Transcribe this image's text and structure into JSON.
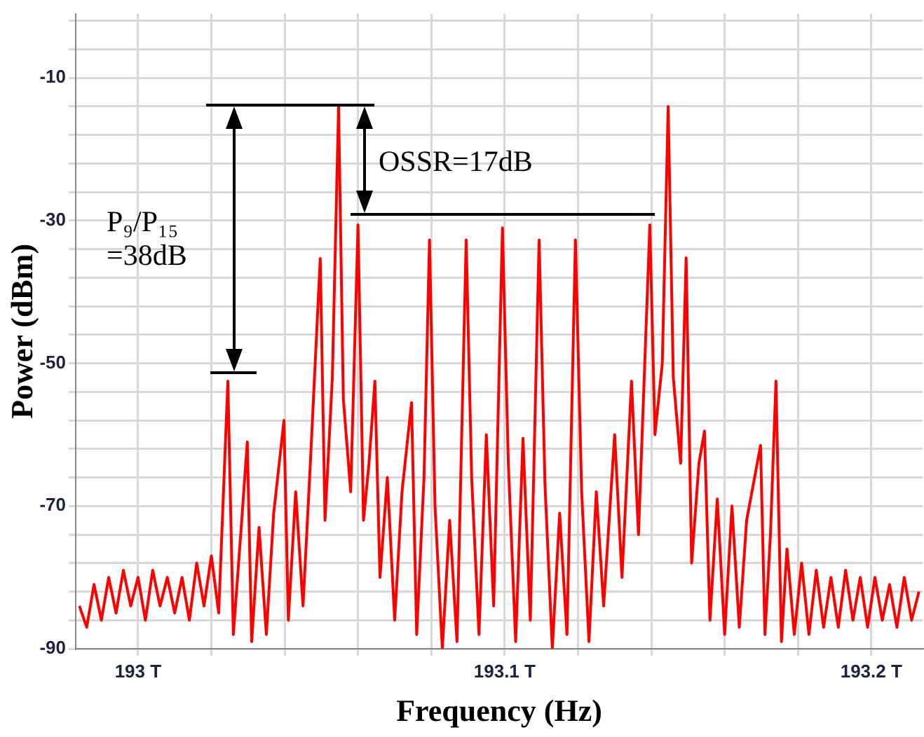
{
  "chart_data": {
    "type": "line",
    "xlabel": "Frequency (Hz)",
    "ylabel": "Power (dBm)",
    "color": "#ff0000",
    "marker": "none",
    "grid": true,
    "xlim": [
      192.983,
      193.214
    ],
    "ylim": [
      -90,
      -1
    ],
    "xticks": [
      {
        "value": 193,
        "label": "193 T"
      },
      {
        "value": 193.02,
        "label": null
      },
      {
        "value": 193.04,
        "label": null
      },
      {
        "value": 193.06,
        "label": null
      },
      {
        "value": 193.08,
        "label": null
      },
      {
        "value": 193.1,
        "label": "193.1 T"
      },
      {
        "value": 193.12,
        "label": null
      },
      {
        "value": 193.14,
        "label": null
      },
      {
        "value": 193.16,
        "label": null
      },
      {
        "value": 193.18,
        "label": null
      },
      {
        "value": 193.2,
        "label": "193.2 T"
      }
    ],
    "yticks": [
      -90,
      {
        "value": -86,
        "label": null
      },
      {
        "value": -82,
        "label": null
      },
      {
        "value": -78,
        "label": null
      },
      {
        "value": -74,
        "label": null
      },
      -70,
      {
        "value": -66,
        "label": null
      },
      {
        "value": -62,
        "label": null
      },
      {
        "value": -58,
        "label": null
      },
      {
        "value": -54,
        "label": null
      },
      -50,
      {
        "value": -46,
        "label": null
      },
      {
        "value": -42,
        "label": null
      },
      {
        "value": -38,
        "label": null
      },
      {
        "value": -34,
        "label": null
      },
      -30,
      {
        "value": -26,
        "label": null
      },
      {
        "value": -22,
        "label": null
      },
      {
        "value": -18,
        "label": null
      },
      {
        "value": -14,
        "label": null
      },
      -10,
      {
        "value": -6,
        "label": null
      },
      {
        "value": -2,
        "label": null
      }
    ],
    "annotations": [
      "OSSR=17dB",
      "P₉/P₁₅\n=38dB"
    ],
    "x": [
      192.984,
      192.986,
      192.988,
      192.99,
      192.992,
      192.994,
      192.996,
      192.998,
      193.0,
      193.002,
      193.004,
      193.006,
      193.008,
      193.01,
      193.012,
      193.014,
      193.016,
      193.018,
      193.02,
      193.022,
      193.0245,
      193.026,
      193.028,
      193.0298,
      193.031,
      193.033,
      193.035,
      193.037,
      193.0398,
      193.041,
      193.043,
      193.045,
      193.047,
      193.0497,
      193.051,
      193.053,
      193.0547,
      193.056,
      193.058,
      193.06,
      193.0615,
      193.063,
      193.0646,
      193.066,
      193.068,
      193.07,
      193.072,
      193.0746,
      193.076,
      193.078,
      193.0795,
      193.081,
      193.083,
      193.085,
      193.087,
      193.0895,
      193.091,
      193.093,
      193.095,
      193.097,
      193.0994,
      193.101,
      193.103,
      193.105,
      193.107,
      193.1094,
      193.111,
      193.113,
      193.115,
      193.117,
      193.1193,
      193.121,
      193.123,
      193.125,
      193.127,
      193.13,
      193.132,
      193.1346,
      193.1365,
      193.1396,
      193.141,
      193.143,
      193.1446,
      193.146,
      193.148,
      193.1495,
      193.151,
      193.153,
      193.1545,
      193.156,
      193.158,
      193.16,
      193.162,
      193.164,
      193.166,
      193.1698,
      193.171,
      193.1725,
      193.174,
      193.1755,
      193.177,
      193.179,
      193.181,
      193.183,
      193.185,
      193.187,
      193.189,
      193.191,
      193.193,
      193.195,
      193.197,
      193.199,
      193.201,
      193.203,
      193.205,
      193.207,
      193.209,
      193.211,
      193.213
    ],
    "values": [
      -84,
      -87,
      -81,
      -86,
      -80,
      -85,
      -79,
      -84,
      -80,
      -86,
      -79,
      -84,
      -80,
      -85,
      -80,
      -86,
      -78,
      -84,
      -77,
      -85,
      -52.5,
      -88,
      -74,
      -61,
      -89,
      -73,
      -88,
      -71,
      -58,
      -86,
      -68,
      -84,
      -64,
      -35.3,
      -72,
      -52,
      -14,
      -55,
      -68,
      -30.6,
      -72,
      -64,
      -52.5,
      -80,
      -66,
      -86,
      -68,
      -55.5,
      -88,
      -66,
      -32.7,
      -70,
      -90,
      -72,
      -89,
      -32.7,
      -66,
      -88,
      -60,
      -84,
      -31,
      -64,
      -89,
      -60.5,
      -86,
      -32.7,
      -67,
      -90,
      -71,
      -88,
      -32.7,
      -68,
      -89,
      -68,
      -84,
      -60,
      -80,
      -52.5,
      -74,
      -30.6,
      -60,
      -50,
      -14,
      -52,
      -64,
      -35.2,
      -78,
      -64,
      -59.5,
      -86,
      -69,
      -88,
      -70,
      -87,
      -72,
      -61.5,
      -88,
      -74,
      -52.5,
      -89,
      -76,
      -88,
      -78,
      -88,
      -79,
      -87,
      -80,
      -87,
      -79,
      -86,
      -80,
      -87,
      -80,
      -86,
      -81,
      -87,
      -80,
      -86,
      -82
    ]
  }
}
